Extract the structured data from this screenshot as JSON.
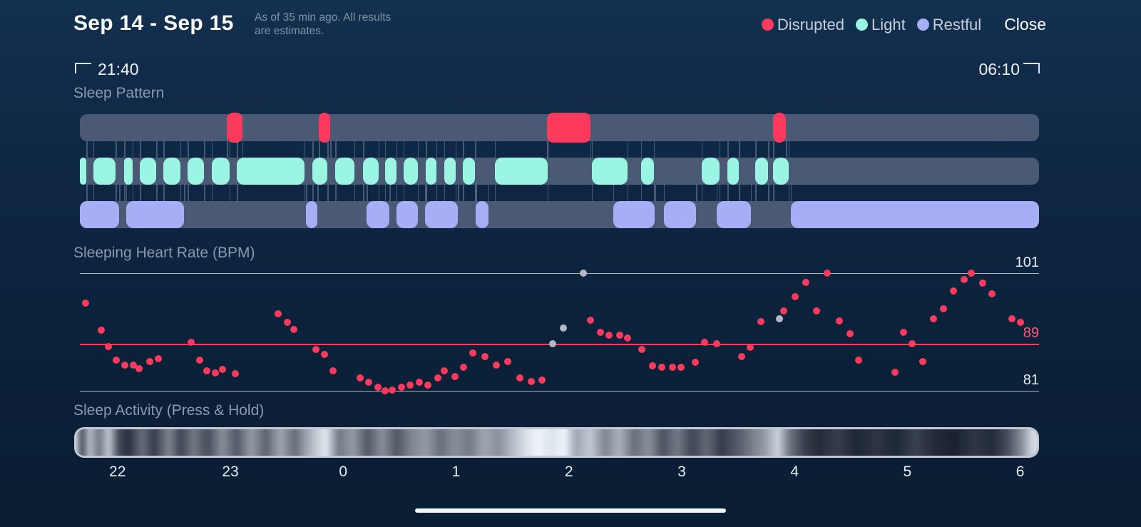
{
  "header": {
    "date_range": "Sep 14 - Sep 15",
    "subtitle": "As of 35 min ago. All results\nare estimates.",
    "legend": [
      {
        "label": "Disrupted",
        "color": "#fb3a5d"
      },
      {
        "label": "Light",
        "color": "#9af5e2"
      },
      {
        "label": "Restful",
        "color": "#a6aef6"
      }
    ],
    "close_label": "Close"
  },
  "time_window": {
    "start": "21:40",
    "end": "06:10"
  },
  "sleep_pattern": {
    "title": "Sleep Pattern",
    "colors": {
      "disrupted": "#fb3a5d",
      "light": "#9af5e2",
      "restful": "#a6aef6",
      "track": "#4a5974"
    },
    "disrupted": [
      [
        0.1532,
        0.1695
      ],
      [
        0.2491,
        0.261
      ],
      [
        0.487,
        0.5323
      ],
      [
        0.7227,
        0.7361
      ]
    ],
    "light": [
      [
        0.0,
        0.0067
      ],
      [
        0.0141,
        0.0372
      ],
      [
        0.0461,
        0.055
      ],
      [
        0.0625,
        0.0796
      ],
      [
        0.087,
        0.1048
      ],
      [
        0.1123,
        0.1294
      ],
      [
        0.1375,
        0.1561
      ],
      [
        0.1636,
        0.2342
      ],
      [
        0.2424,
        0.258
      ],
      [
        0.2662,
        0.2862
      ],
      [
        0.2952,
        0.3115
      ],
      [
        0.3182,
        0.3301
      ],
      [
        0.3375,
        0.3524
      ],
      [
        0.3606,
        0.3717
      ],
      [
        0.3799,
        0.3918
      ],
      [
        0.3993,
        0.4119
      ],
      [
        0.4327,
        0.4877
      ],
      [
        0.5338,
        0.571
      ],
      [
        0.5851,
        0.5985
      ],
      [
        0.6483,
        0.6669
      ],
      [
        0.6751,
        0.687
      ],
      [
        0.7041,
        0.7175
      ],
      [
        0.7227,
        0.739
      ]
    ],
    "restful": [
      [
        0.0,
        0.0409
      ],
      [
        0.0483,
        0.1086
      ],
      [
        0.2357,
        0.2476
      ],
      [
        0.2989,
        0.3227
      ],
      [
        0.3301,
        0.3524
      ],
      [
        0.3599,
        0.3941
      ],
      [
        0.4127,
        0.426
      ],
      [
        0.5561,
        0.5993
      ],
      [
        0.6089,
        0.6424
      ],
      [
        0.6639,
        0.6996
      ],
      [
        0.7412,
        1.0
      ]
    ]
  },
  "chart_data": {
    "type": "scatter",
    "title": "Sleeping Heart Rate (BPM)",
    "ylabel": "BPM",
    "ylim": [
      81,
      101
    ],
    "gridlines": [
      {
        "value": 101,
        "emphasis": false
      },
      {
        "value": 89,
        "emphasis": true
      },
      {
        "value": 81,
        "emphasis": false
      }
    ],
    "x_ticks": [
      {
        "label": "22",
        "f": 0.0392
      },
      {
        "label": "23",
        "f": 0.1569
      },
      {
        "label": "0",
        "f": 0.2745
      },
      {
        "label": "1",
        "f": 0.3922
      },
      {
        "label": "2",
        "f": 0.5098
      },
      {
        "label": "3",
        "f": 0.6275
      },
      {
        "label": "4",
        "f": 0.7451
      },
      {
        "label": "5",
        "f": 0.8627
      },
      {
        "label": "6",
        "f": 0.9804
      }
    ],
    "series": [
      {
        "name": "heart-rate",
        "color": "#fb3a5d",
        "points": [
          [
            0.006,
            95.9
          ],
          [
            0.022,
            91.3
          ],
          [
            0.03,
            88.5
          ],
          [
            0.038,
            86.2
          ],
          [
            0.047,
            85.4
          ],
          [
            0.056,
            85.4
          ],
          [
            0.062,
            84.8
          ],
          [
            0.073,
            86.0
          ],
          [
            0.082,
            86.5
          ],
          [
            0.116,
            89.2
          ],
          [
            0.125,
            86.2
          ],
          [
            0.132,
            84.4
          ],
          [
            0.141,
            84.0
          ],
          [
            0.149,
            84.6
          ],
          [
            0.162,
            83.9
          ],
          [
            0.207,
            94.1
          ],
          [
            0.216,
            92.6
          ],
          [
            0.223,
            91.4
          ],
          [
            0.246,
            88.0
          ],
          [
            0.255,
            87.2
          ],
          [
            0.264,
            84.4
          ],
          [
            0.292,
            83.2
          ],
          [
            0.301,
            82.4
          ],
          [
            0.311,
            81.6
          ],
          [
            0.318,
            81.0
          ],
          [
            0.326,
            81.1
          ],
          [
            0.335,
            81.6
          ],
          [
            0.344,
            82.0
          ],
          [
            0.354,
            82.4
          ],
          [
            0.363,
            82.0
          ],
          [
            0.373,
            83.2
          ],
          [
            0.38,
            84.4
          ],
          [
            0.391,
            83.4
          ],
          [
            0.4,
            85.0
          ],
          [
            0.41,
            87.4
          ],
          [
            0.422,
            86.8
          ],
          [
            0.434,
            85.4
          ],
          [
            0.446,
            86.0
          ],
          [
            0.459,
            83.2
          ],
          [
            0.471,
            82.6
          ],
          [
            0.482,
            82.8
          ],
          [
            0.532,
            93.0
          ],
          [
            0.543,
            91.0
          ],
          [
            0.552,
            90.5
          ],
          [
            0.563,
            90.5
          ],
          [
            0.571,
            90.0
          ],
          [
            0.586,
            88.0
          ],
          [
            0.597,
            85.3
          ],
          [
            0.607,
            85.0
          ],
          [
            0.618,
            85.0
          ],
          [
            0.627,
            85.0
          ],
          [
            0.642,
            85.8
          ],
          [
            0.651,
            89.2
          ],
          [
            0.664,
            89.0
          ],
          [
            0.69,
            86.8
          ],
          [
            0.699,
            88.4
          ],
          [
            0.71,
            92.8
          ],
          [
            0.734,
            94.6
          ],
          [
            0.746,
            97.0
          ],
          [
            0.757,
            99.4
          ],
          [
            0.768,
            94.6
          ],
          [
            0.779,
            101.0
          ],
          [
            0.792,
            92.9
          ],
          [
            0.803,
            90.7
          ],
          [
            0.812,
            86.2
          ],
          [
            0.85,
            84.1
          ],
          [
            0.859,
            91.0
          ],
          [
            0.868,
            89.0
          ],
          [
            0.879,
            86.0
          ],
          [
            0.89,
            93.2
          ],
          [
            0.9,
            95.0
          ],
          [
            0.911,
            98.0
          ],
          [
            0.922,
            99.9
          ],
          [
            0.929,
            101.0
          ],
          [
            0.941,
            99.3
          ],
          [
            0.951,
            97.5
          ],
          [
            0.972,
            93.2
          ],
          [
            0.981,
            92.6
          ]
        ]
      },
      {
        "name": "estimated",
        "color": "#b3bac6",
        "points": [
          [
            0.493,
            89.0
          ],
          [
            0.504,
            91.7
          ],
          [
            0.525,
            101.0
          ],
          [
            0.729,
            93.2
          ]
        ]
      }
    ]
  },
  "activity": {
    "title": "Sleep Activity (Press & Hold)",
    "stops": [
      [
        0.0,
        0.95
      ],
      [
        0.004,
        0.85
      ],
      [
        0.01,
        0.25
      ],
      [
        0.018,
        0.75
      ],
      [
        0.028,
        0.45
      ],
      [
        0.038,
        0.8
      ],
      [
        0.048,
        0.25
      ],
      [
        0.058,
        0.12
      ],
      [
        0.072,
        0.4
      ],
      [
        0.085,
        0.18
      ],
      [
        0.1,
        0.5
      ],
      [
        0.112,
        0.22
      ],
      [
        0.125,
        0.45
      ],
      [
        0.14,
        0.25
      ],
      [
        0.155,
        0.55
      ],
      [
        0.17,
        0.3
      ],
      [
        0.185,
        0.6
      ],
      [
        0.2,
        0.35
      ],
      [
        0.215,
        0.65
      ],
      [
        0.23,
        0.4
      ],
      [
        0.245,
        0.7
      ],
      [
        0.262,
        0.95
      ],
      [
        0.275,
        0.45
      ],
      [
        0.29,
        0.6
      ],
      [
        0.305,
        0.3
      ],
      [
        0.32,
        0.55
      ],
      [
        0.335,
        0.3
      ],
      [
        0.35,
        0.5
      ],
      [
        0.365,
        0.6
      ],
      [
        0.38,
        0.4
      ],
      [
        0.395,
        0.55
      ],
      [
        0.41,
        0.45
      ],
      [
        0.425,
        0.65
      ],
      [
        0.44,
        0.55
      ],
      [
        0.455,
        0.75
      ],
      [
        0.468,
        0.9
      ],
      [
        0.48,
        1.0
      ],
      [
        0.495,
        0.92
      ],
      [
        0.508,
        1.0
      ],
      [
        0.52,
        0.65
      ],
      [
        0.535,
        0.8
      ],
      [
        0.55,
        0.5
      ],
      [
        0.565,
        0.7
      ],
      [
        0.58,
        0.4
      ],
      [
        0.595,
        0.55
      ],
      [
        0.61,
        0.28
      ],
      [
        0.625,
        0.45
      ],
      [
        0.64,
        0.22
      ],
      [
        0.655,
        0.38
      ],
      [
        0.67,
        0.18
      ],
      [
        0.685,
        0.3
      ],
      [
        0.7,
        0.45
      ],
      [
        0.715,
        0.6
      ],
      [
        0.728,
        0.85
      ],
      [
        0.74,
        0.45
      ],
      [
        0.755,
        0.2
      ],
      [
        0.77,
        0.1
      ],
      [
        0.79,
        0.18
      ],
      [
        0.81,
        0.08
      ],
      [
        0.83,
        0.15
      ],
      [
        0.85,
        0.08
      ],
      [
        0.87,
        0.2
      ],
      [
        0.89,
        0.1
      ],
      [
        0.91,
        0.06
      ],
      [
        0.93,
        0.15
      ],
      [
        0.95,
        0.1
      ],
      [
        0.965,
        0.25
      ],
      [
        0.98,
        0.55
      ],
      [
        0.99,
        0.85
      ],
      [
        1.0,
        0.92
      ]
    ]
  }
}
